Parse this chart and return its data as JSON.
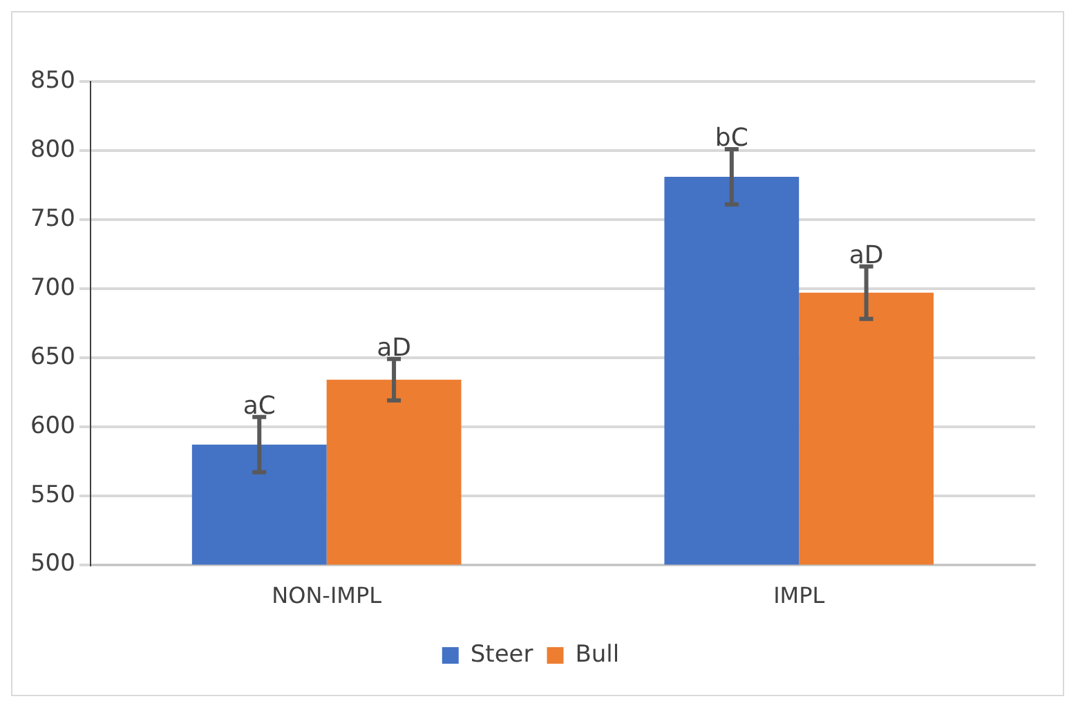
{
  "chart_data": {
    "type": "bar",
    "categories": [
      "NON-IMPL",
      "IMPL"
    ],
    "series": [
      {
        "name": "Steer",
        "color": "#4472c4",
        "values": [
          587,
          781
        ],
        "errors": [
          20,
          20
        ],
        "value_labels": [
          "aC",
          "bC"
        ]
      },
      {
        "name": "Bull",
        "color": "#ed7d31",
        "values": [
          634,
          697
        ],
        "errors": [
          15,
          19
        ],
        "value_labels": [
          "aD",
          "aD"
        ]
      }
    ],
    "ylim": [
      500,
      850
    ],
    "yticks": [
      500,
      550,
      600,
      650,
      700,
      750,
      800,
      850
    ],
    "grid": "y",
    "legend": "bottom"
  }
}
